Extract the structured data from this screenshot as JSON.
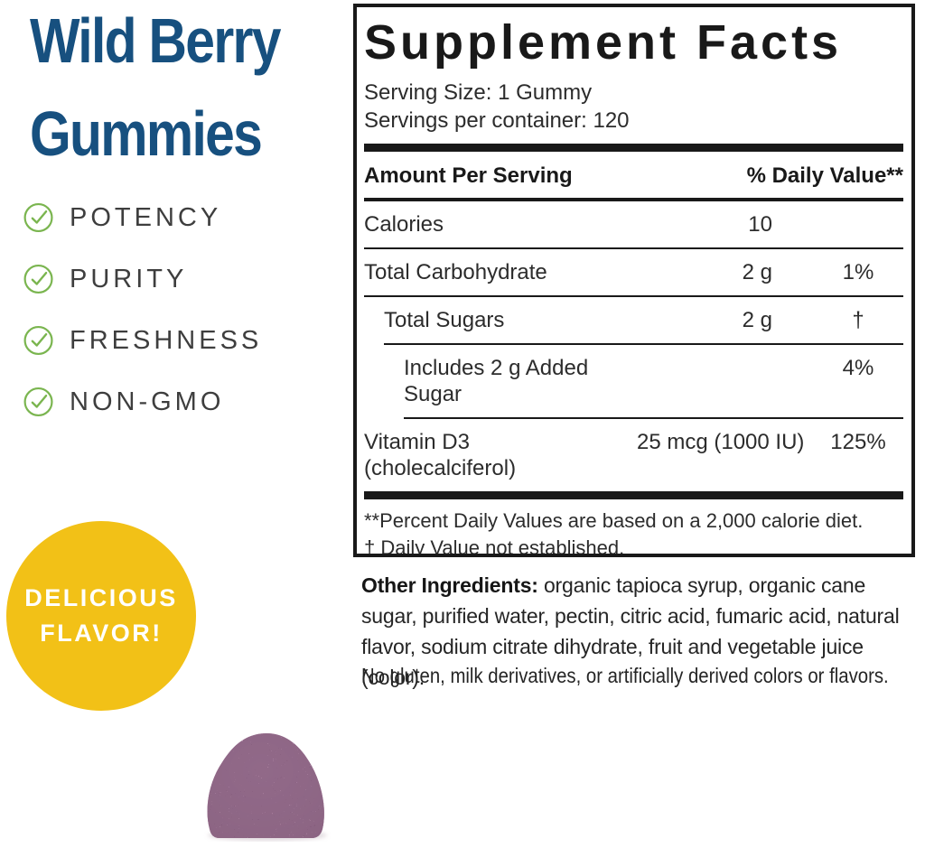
{
  "colors": {
    "title_blue": "#17507f",
    "check_green": "#7ab54f",
    "feature_text": "#3e3e3e",
    "badge_yellow": "#f2c117",
    "badge_text": "#ffffff",
    "panel_ink": "#191919",
    "body_ink": "#2c2c2c"
  },
  "left": {
    "title_line1": "Wild Berry",
    "title_line2": "Gummies",
    "features": [
      {
        "label": "POTENCY"
      },
      {
        "label": "PURITY"
      },
      {
        "label": "FRESHNESS"
      },
      {
        "label": "NON-GMO"
      }
    ],
    "badge": {
      "line1": "DELICIOUS",
      "line2": "FLAVOR!"
    },
    "gummy_alt": "purple wild berry gummy"
  },
  "panel": {
    "title": "Supplement Facts",
    "serving_size": "Serving Size: 1 Gummy",
    "servings_per_container": "Servings per container: 120",
    "header": {
      "left": "Amount Per Serving",
      "right": "% Daily Value**"
    },
    "rows": [
      {
        "name": "Calories",
        "amount": "10",
        "dv": "",
        "indent": 0
      },
      {
        "name": "Total Carbohydrate",
        "amount": "2 g",
        "dv": "1%",
        "indent": 0
      },
      {
        "name": "Total Sugars",
        "amount": "2 g",
        "dv": "†",
        "indent": 1
      },
      {
        "name": "Includes 2 g Added Sugar",
        "amount": "",
        "dv": "4%",
        "indent": 2
      },
      {
        "name": "Vitamin D3",
        "name2": "(cholecalciferol)",
        "amount": "25 mcg (1000 IU)",
        "dv": "125%",
        "indent": 0
      }
    ],
    "footnotes": [
      "**Percent Daily Values are based on a 2,000 calorie diet.",
      "†  Daily Value not established."
    ]
  },
  "below": {
    "other_ingredients_label": "Other Ingredients:",
    "other_ingredients_text": " organic tapioca syrup, organic cane sugar, purified water, pectin, citric acid, fumaric acid, natural flavor, sodium citrate dihydrate, fruit and vegetable juice (color).",
    "allergen_text": "No gluten, milk derivatives, or artificially derived colors or flavors."
  }
}
